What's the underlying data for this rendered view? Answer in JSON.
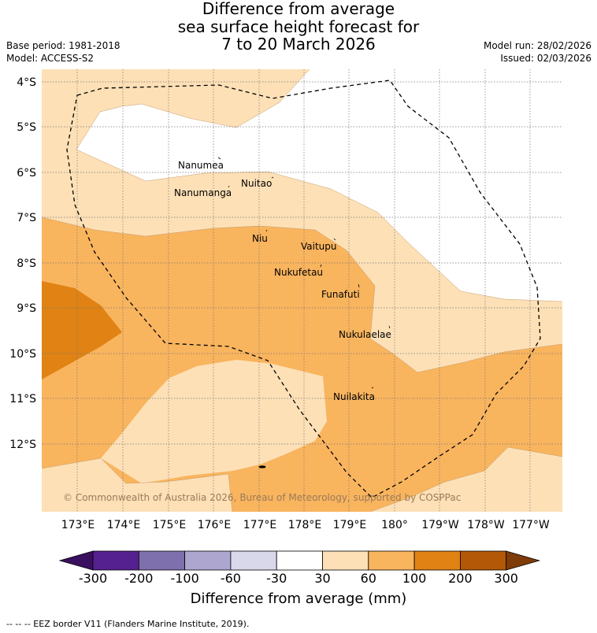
{
  "title": {
    "line1": "Difference from average",
    "line2": "sea surface height forecast for",
    "line3": "7 to 20 March 2026"
  },
  "meta": {
    "base_period": "Base period: 1981-2018",
    "model": "Model: ACCESS-S2",
    "model_run": "Model run: 28/02/2026",
    "issued": "Issued: 02/03/2026"
  },
  "map": {
    "lat_ticks": [
      "4°S",
      "5°S",
      "6°S",
      "7°S",
      "8°S",
      "9°S",
      "10°S",
      "11°S",
      "12°S"
    ],
    "lon_ticks": [
      "173°E",
      "174°E",
      "175°E",
      "176°E",
      "177°E",
      "178°E",
      "179°E",
      "180°",
      "179°W",
      "178°W",
      "177°W"
    ],
    "places": [
      {
        "name": "Nanumea"
      },
      {
        "name": "Nuitao"
      },
      {
        "name": "Nanumanga"
      },
      {
        "name": "Niu"
      },
      {
        "name": "Vaitupu"
      },
      {
        "name": "Nukufetau"
      },
      {
        "name": "Funafuti"
      },
      {
        "name": "Nukulaelae"
      },
      {
        "name": "Nuilakita"
      }
    ],
    "copyright": "© Commonwealth of Australia 2026, Bureau of Meteorology, supported by COSPPac"
  },
  "colorbar": {
    "colors": [
      "#3b0f5f",
      "#55208f",
      "#7e6fad",
      "#ada6cf",
      "#d9d8ea",
      "#ffffff",
      "#fde0b6",
      "#f9b45e",
      "#e08214",
      "#b35806",
      "#7f3b08"
    ],
    "labels": [
      "-300",
      "-200",
      "-100",
      "-60",
      "-30",
      "30",
      "60",
      "100",
      "200",
      "300"
    ],
    "title": "Difference from average (mm)"
  },
  "footnote": "--  --  -- EEZ border V11 (Flanders Marine Institute, 2019)."
}
